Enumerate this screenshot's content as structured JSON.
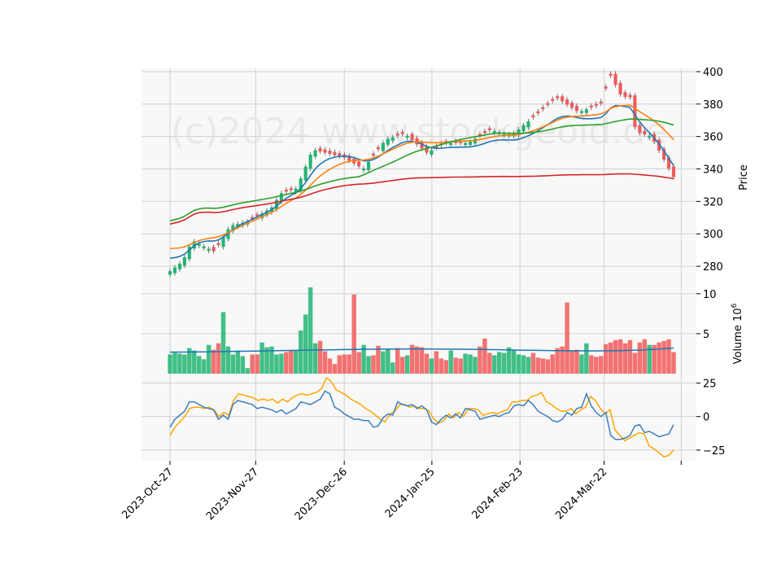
{
  "watermark": "(c)2024 www.stockgeoid.de",
  "colors": {
    "panel_bg": "#f8f8f8",
    "grid": "#d0d0d0",
    "up": "#22b573",
    "down": "#f15a5a",
    "ma_fast": "#1f77b4",
    "ma_mid": "#ff7f0e",
    "ma_slow": "#2ca02c",
    "ma_long": "#d62728",
    "vol_ma": "#1f77b4",
    "osc_fast": "#3b7fbf",
    "osc_slow": "#ffa500"
  },
  "chart_data": [
    {
      "type": "candlestick",
      "ylabel": "Price",
      "ylim": [
        268,
        402
      ],
      "yticks": [
        280,
        300,
        320,
        340,
        360,
        380,
        400
      ],
      "grid": true,
      "ohlc_shape": "daily candles, ~105 sessions from 2023-Oct-27 to 2024-Apr-3",
      "close_keypoints": [
        {
          "date": "2023-10-27",
          "close": 277
        },
        {
          "date": "2023-10-31",
          "close": 283
        },
        {
          "date": "2023-11-03",
          "close": 296
        },
        {
          "date": "2023-11-10",
          "close": 289
        },
        {
          "date": "2023-11-15",
          "close": 305
        },
        {
          "date": "2023-11-21",
          "close": 308
        },
        {
          "date": "2023-11-28",
          "close": 316
        },
        {
          "date": "2023-12-01",
          "close": 325
        },
        {
          "date": "2023-12-06",
          "close": 328
        },
        {
          "date": "2023-12-11",
          "close": 352
        },
        {
          "date": "2023-12-15",
          "close": 350
        },
        {
          "date": "2023-12-21",
          "close": 347
        },
        {
          "date": "2023-12-27",
          "close": 340
        },
        {
          "date": "2024-01-03",
          "close": 358
        },
        {
          "date": "2024-01-09",
          "close": 362
        },
        {
          "date": "2024-01-16",
          "close": 350
        },
        {
          "date": "2024-01-22",
          "close": 356
        },
        {
          "date": "2024-01-29",
          "close": 356
        },
        {
          "date": "2024-02-05",
          "close": 364
        },
        {
          "date": "2024-02-12",
          "close": 361
        },
        {
          "date": "2024-02-20",
          "close": 374
        },
        {
          "date": "2024-02-26",
          "close": 384
        },
        {
          "date": "2024-03-04",
          "close": 375
        },
        {
          "date": "2024-03-11",
          "close": 380
        },
        {
          "date": "2024-03-14",
          "close": 398
        },
        {
          "date": "2024-03-18",
          "close": 383
        },
        {
          "date": "2024-03-20",
          "close": 387
        },
        {
          "date": "2024-03-22",
          "close": 363
        },
        {
          "date": "2024-03-27",
          "close": 360
        },
        {
          "date": "2024-04-01",
          "close": 342
        },
        {
          "date": "2024-04-03",
          "close": 335
        }
      ],
      "series": [
        {
          "name": "",
          "color_key": "ma_fast",
          "values_start_end": [
            285,
            342
          ]
        },
        {
          "name": "",
          "color_key": "ma_mid",
          "values_start_end": [
            291,
            358
          ]
        },
        {
          "name": "",
          "color_key": "ma_slow",
          "values_start_end": [
            308,
            367
          ]
        },
        {
          "name": "",
          "color_key": "ma_long",
          "values_start_end": [
            306,
            334
          ]
        }
      ]
    },
    {
      "type": "bar",
      "ylabel": "Volume  10^6",
      "ylabel_main": "Volume",
      "ylabel_exp": "10",
      "ylabel_sup": "6",
      "ylim": [
        0,
        11
      ],
      "yticks": [
        5,
        10
      ],
      "grid": true,
      "values": [
        2.4,
        2.6,
        2.5,
        2.4,
        3.2,
        2.9,
        2.2,
        1.8,
        3.6,
        3.0,
        3.8,
        7.7,
        3.4,
        2.4,
        2.9,
        2.2,
        0.7,
        2.4,
        2.4,
        3.9,
        3.3,
        3.4,
        2.4,
        2.5,
        2.7,
        2.9,
        2.9,
        5.4,
        7.4,
        10.8,
        3.8,
        4.1,
        2.8,
        1.9,
        1.2,
        2.3,
        2.4,
        2.4,
        9.9,
        2.7,
        3.6,
        2.2,
        2.3,
        3.5,
        2.8,
        3.1,
        1.4,
        3.2,
        2.1,
        2.3,
        3.6,
        3.4,
        3.3,
        2.5,
        1.9,
        2.8,
        1.9,
        1.7,
        2.9,
        2.0,
        1.9,
        2.5,
        2.4,
        2.1,
        3.4,
        4.4,
        2.6,
        2.3,
        2.7,
        2.6,
        3.3,
        3.0,
        2.4,
        2.3,
        2.1,
        2.6,
        2.0,
        1.9,
        1.8,
        2.4,
        3.2,
        3.4,
        8.9,
        2.9,
        3.0,
        2.4,
        3.8,
        2.3,
        2.1,
        2.2,
        3.7,
        3.9,
        4.2,
        4.3,
        3.8,
        4.2,
        2.6,
        3.9,
        4.3,
        3.6,
        3.6,
        3.9,
        4.1,
        4.3,
        2.7
      ],
      "directions": "uuuuuuuuudduuuuuudduuuuudduuuuuddddddddduudduuudduddddudddudduuuddduuuuuuuudddddddddduuddddddddddddudddddu",
      "series": [
        {
          "name": "",
          "color_key": "vol_ma",
          "level": 2.9
        }
      ]
    },
    {
      "type": "line",
      "ylim": [
        -33,
        32
      ],
      "yticks": [
        -25,
        0,
        25
      ],
      "grid": true,
      "series": [
        {
          "name": "",
          "color_key": "osc_fast",
          "values": [
            -8,
            -2,
            1,
            4,
            11,
            11,
            9,
            7,
            6,
            5,
            -2,
            1,
            -2,
            9,
            12,
            11,
            10,
            9,
            6,
            7,
            6,
            5,
            3,
            5,
            2,
            4,
            6,
            11,
            10,
            9,
            11,
            13,
            19,
            17,
            7,
            5,
            2,
            0,
            -2,
            -2,
            -3,
            -3,
            -8,
            -7,
            -1,
            2,
            1,
            11,
            9,
            8,
            9,
            6,
            8,
            5,
            -4,
            -6,
            -2,
            1,
            -1,
            2,
            -1,
            6,
            5,
            4,
            -2,
            -1,
            0,
            1,
            0,
            2,
            3,
            8,
            9,
            8,
            12,
            9,
            4,
            2,
            0,
            -3,
            -4,
            -2,
            3,
            1,
            6,
            7,
            17,
            8,
            3,
            0,
            3,
            -14,
            -17,
            -17,
            -16,
            -14,
            -7,
            -6,
            -12,
            -11,
            -13,
            -15,
            -14,
            -13,
            -6
          ]
        },
        {
          "name": "",
          "color_key": "osc_slow",
          "values": [
            -14,
            -8,
            -4,
            0,
            6,
            7,
            7,
            6,
            7,
            5,
            0,
            3,
            1,
            12,
            17,
            16,
            15,
            14,
            12,
            13,
            12,
            13,
            10,
            13,
            11,
            14,
            16,
            17,
            16,
            17,
            18,
            21,
            29,
            26,
            20,
            18,
            16,
            13,
            11,
            9,
            6,
            4,
            1,
            -2,
            -4,
            2,
            4,
            9,
            9,
            7,
            8,
            6,
            6,
            4,
            -2,
            -5,
            -3,
            2,
            -1,
            3,
            0,
            6,
            6,
            5,
            1,
            2,
            3,
            2,
            4,
            5,
            11,
            11,
            12,
            12,
            15,
            16,
            18,
            11,
            9,
            6,
            4,
            4,
            6,
            2,
            5,
            7,
            15,
            12,
            6,
            2,
            5,
            -10,
            -14,
            -18,
            -16,
            -14,
            -12,
            -13,
            -22,
            -24,
            -27,
            -30,
            -29,
            -25
          ]
        }
      ]
    }
  ],
  "xaxis": {
    "tick_labels": [
      "2023-Oct-27",
      "2023-Nov-27",
      "2023-Dec-26",
      "2024-Jan-25",
      "2024-Feb-23",
      "2024-Mar-22"
    ],
    "tick_fractions": [
      0.0,
      0.17,
      0.346,
      0.52,
      0.695,
      0.862
    ]
  }
}
